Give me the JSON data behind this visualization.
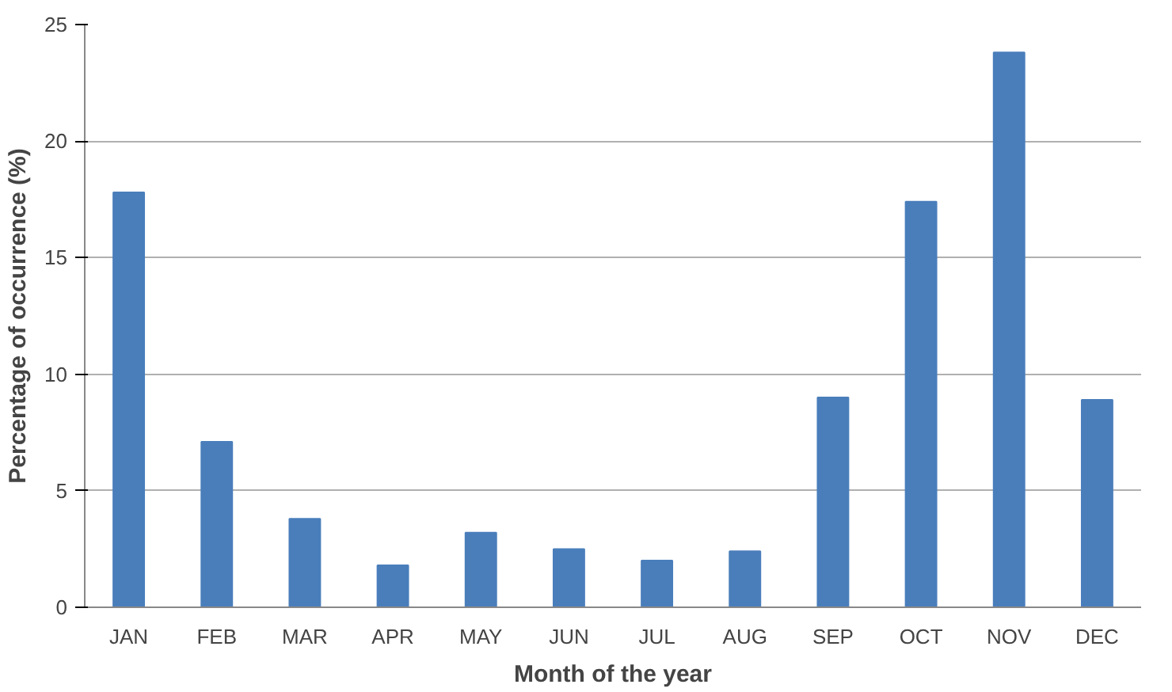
{
  "chart_data": {
    "type": "bar",
    "xlabel": "Month of the year",
    "ylabel": "Percentage of occurrence (%)",
    "categories": [
      "JAN",
      "FEB",
      "MAR",
      "APR",
      "MAY",
      "JUN",
      "JUL",
      "AUG",
      "SEP",
      "OCT",
      "NOV",
      "DEC"
    ],
    "values": [
      17.8,
      7.1,
      3.8,
      1.8,
      3.2,
      2.5,
      2.0,
      2.4,
      9.0,
      17.4,
      23.8,
      8.9
    ],
    "color": "#4a7ebb",
    "ylim": [
      0,
      25
    ],
    "yticks": [
      0,
      5,
      10,
      15,
      20,
      25
    ],
    "grid": "y"
  }
}
